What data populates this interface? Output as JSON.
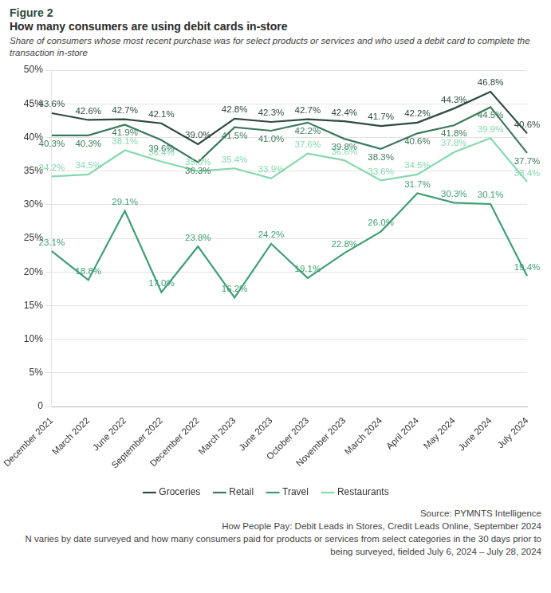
{
  "chart_data": {
    "type": "line",
    "figure_label": "Figure 2",
    "title": "How many consumers are using debit cards in-store",
    "subtitle": "Share of consumers whose most recent purchase was for select products or services and who used a debit card to complete the transaction in-store",
    "notes": [
      "Source: PYMNTS Intelligence",
      "How People Pay: Debit Leads in Stores, Credit Leads Online, September 2024",
      "N varies by date surveyed and how many consumers paid for products or services from select categories in the 30 days prior to being surveyed, fielded July 6, 2024 – July 28, 2024"
    ],
    "categories": [
      "December 2021",
      "March 2022",
      "June 2022",
      "September 2022",
      "December 2022",
      "March 2023",
      "June 2023",
      "October 2023",
      "November 2023",
      "March 2024",
      "April 2024",
      "May 2024",
      "June 2024",
      "July 2024"
    ],
    "series": [
      {
        "name": "Groceries",
        "color": "#2e4a3f",
        "values": [
          43.6,
          42.6,
          42.7,
          42.1,
          39.0,
          42.8,
          42.3,
          42.7,
          42.4,
          41.7,
          42.2,
          44.3,
          46.8,
          40.6
        ],
        "value_labels": [
          "43.6%",
          "42.6%",
          "42.7%",
          "42.1%",
          "39.0%",
          "42.8%",
          "42.3%",
          "42.7%",
          "42.4%",
          "41.7%",
          "42.2%",
          "44.3%",
          "46.8%",
          "40.6%"
        ]
      },
      {
        "name": "Retail",
        "color": "#3d7a5c",
        "values": [
          40.3,
          40.3,
          41.9,
          39.6,
          36.3,
          41.5,
          41.0,
          42.2,
          39.8,
          38.3,
          40.6,
          41.8,
          44.5,
          37.7
        ],
        "value_labels": [
          "40.3%",
          "40.3%",
          "41.9%",
          "39.6%",
          "36.3%",
          "41.5%",
          "41.0%",
          "42.2%",
          "39.8%",
          "38.3%",
          "40.6%",
          "41.8%",
          "44.5%",
          "37.7%"
        ]
      },
      {
        "name": "Travel",
        "color": "#3e9e73",
        "values": [
          23.1,
          18.8,
          29.1,
          17.0,
          23.8,
          16.2,
          24.2,
          19.1,
          22.8,
          26.0,
          31.7,
          30.3,
          30.1,
          19.4
        ],
        "value_labels": [
          "23.1%",
          "18.8%",
          "29.1%",
          "17.0%",
          "23.8%",
          "16.2%",
          "24.2%",
          "19.1%",
          "22.8%",
          "26.0%",
          "31.7%",
          "30.3%",
          "30.1%",
          "19.4%"
        ]
      },
      {
        "name": "Restaurants",
        "color": "#86d8ae",
        "values": [
          34.2,
          34.5,
          38.1,
          36.4,
          35.0,
          35.4,
          33.9,
          37.6,
          36.6,
          33.6,
          34.5,
          37.8,
          39.9,
          33.4
        ],
        "value_labels": [
          "34.2%",
          "34.5%",
          "38.1%",
          "36.4%",
          "35.0%",
          "35.4%",
          "33.9%",
          "37.6%",
          "36.6%",
          "33.6%",
          "34.5%",
          "37.8%",
          "39.9%",
          "33.4%"
        ]
      }
    ],
    "ylim": [
      0,
      50
    ],
    "yticks": [
      0,
      {
        "value": 5,
        "label": "5%"
      },
      {
        "value": 10,
        "label": "10%"
      },
      {
        "value": 15,
        "label": "15%"
      },
      {
        "value": 20,
        "label": "20%"
      },
      {
        "value": 25,
        "label": "25%"
      },
      {
        "value": 30,
        "label": "30%"
      },
      {
        "value": 35,
        "label": "35%"
      },
      {
        "value": 40,
        "label": "40%"
      },
      {
        "value": 45,
        "label": "45%"
      },
      {
        "value": 50,
        "label": "50%"
      }
    ],
    "grid": true,
    "legend": "bottom",
    "data_labels": true,
    "marker": "none",
    "line_style": "solid"
  }
}
